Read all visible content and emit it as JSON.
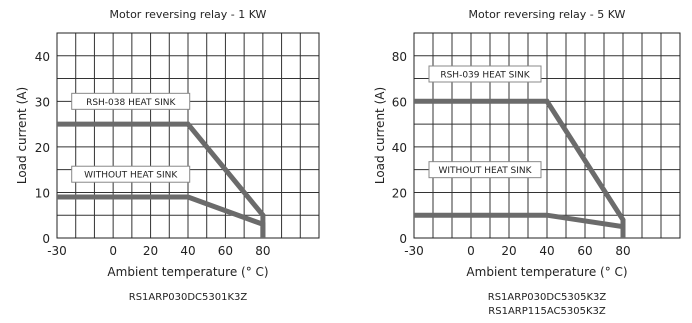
{
  "chart_data": [
    {
      "type": "line",
      "title": "Motor reversing relay - 1 KW",
      "xlabel": "Ambient temperature (° C)",
      "ylabel": "Load current (A)",
      "xlim": [
        -30,
        110
      ],
      "ylim": [
        0,
        45
      ],
      "x_ticks": [
        "-30",
        "0",
        "20",
        "40",
        "60",
        "80"
      ],
      "y_ticks": [
        "0",
        "10",
        "20",
        "30",
        "40"
      ],
      "grid": true,
      "series": [
        {
          "name": "RSH-038 HEAT SINK",
          "points": [
            [
              -30,
              25
            ],
            [
              40,
              25
            ],
            [
              80,
              5
            ],
            [
              80,
              0
            ]
          ]
        },
        {
          "name": "WITHOUT HEAT SINK",
          "points": [
            [
              -30,
              9
            ],
            [
              40,
              9
            ],
            [
              80,
              3
            ],
            [
              80,
              0
            ]
          ]
        }
      ],
      "annotations": [
        {
          "text": "RSH-038 HEAT SINK",
          "x": -20,
          "y": 30
        },
        {
          "text": "WITHOUT HEAT SINK",
          "x": -20,
          "y": 14
        }
      ],
      "model_labels": [
        "RS1ARP030DC5301K3Z"
      ],
      "line_color": "#6b6b6b"
    },
    {
      "type": "line",
      "title": "Motor reversing relay - 5 KW",
      "xlabel": "Ambient temperature (° C)",
      "ylabel": "Load current (A)",
      "xlim": [
        -30,
        110
      ],
      "ylim": [
        0,
        90
      ],
      "x_ticks": [
        "-30",
        "0",
        "20",
        "40",
        "60",
        "80"
      ],
      "y_ticks": [
        "0",
        "20",
        "40",
        "60",
        "80"
      ],
      "grid": true,
      "series": [
        {
          "name": "RSH-039 HEAT SINK",
          "points": [
            [
              -30,
              60
            ],
            [
              40,
              60
            ],
            [
              80,
              8
            ],
            [
              80,
              0
            ]
          ]
        },
        {
          "name": "WITHOUT HEAT SINK",
          "points": [
            [
              -30,
              10
            ],
            [
              40,
              10
            ],
            [
              80,
              5
            ],
            [
              80,
              0
            ]
          ]
        }
      ],
      "annotations": [
        {
          "text": "RSH-039 HEAT SINK",
          "x": -20,
          "y": 72
        },
        {
          "text": "WITHOUT HEAT SINK",
          "x": -20,
          "y": 30
        }
      ],
      "model_labels": [
        "RS1ARP030DC5305K3Z",
        "RS1ARP115AC5305K3Z"
      ],
      "line_color": "#6b6b6b"
    }
  ]
}
